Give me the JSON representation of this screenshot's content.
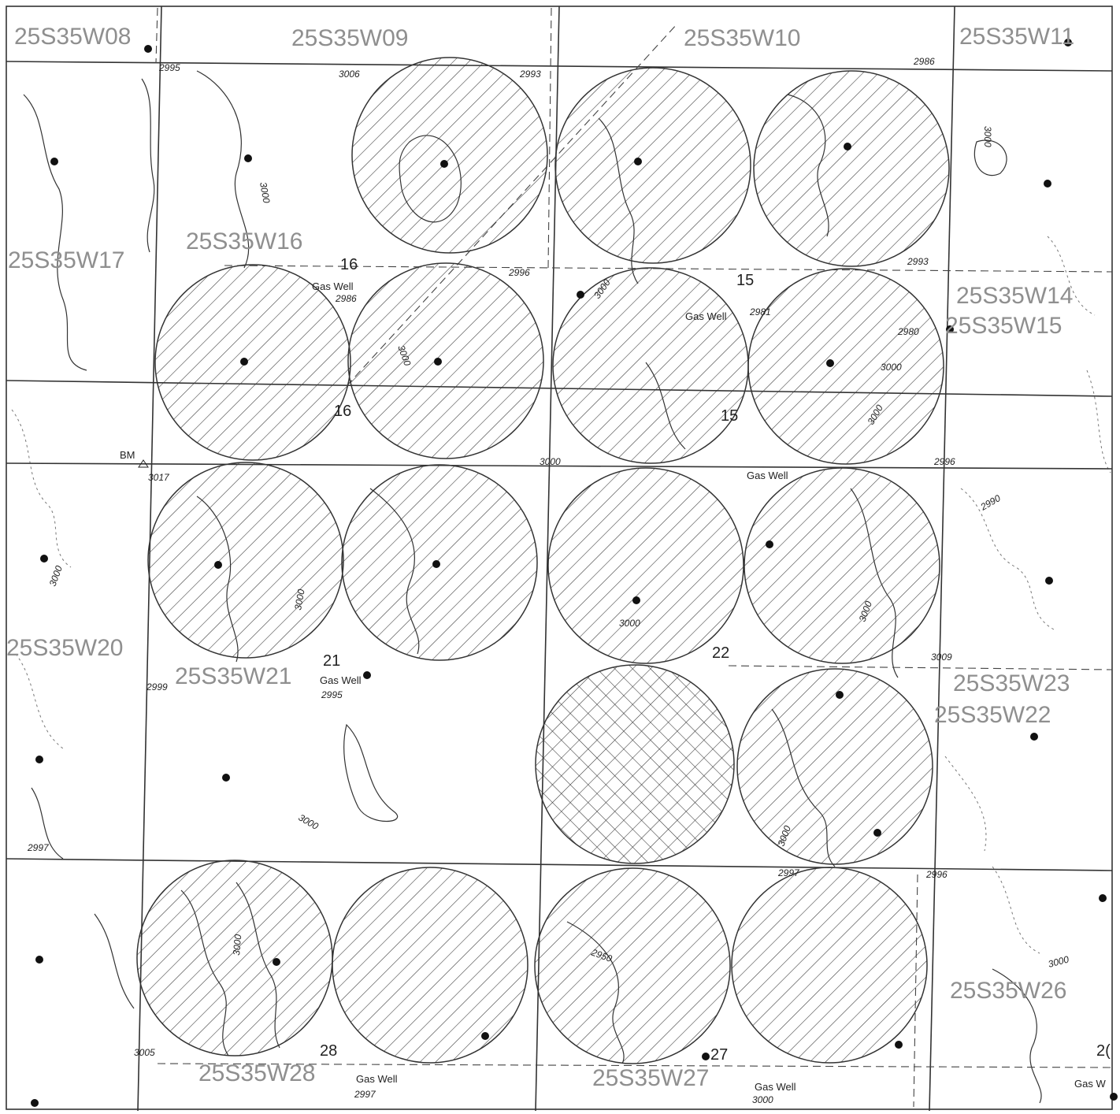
{
  "colors": {
    "background": "#ffffff",
    "ink": "#222222",
    "section_label": "#8f8f8f",
    "hatch": "#333333",
    "contour_solid": "#333333",
    "contour_dotted": "#777777"
  },
  "sections": [
    {
      "id": "s08",
      "label": "25S35W08"
    },
    {
      "id": "s09",
      "label": "25S35W09"
    },
    {
      "id": "s10",
      "label": "25S35W10"
    },
    {
      "id": "s11",
      "label": "25S35W11"
    },
    {
      "id": "s17",
      "label": "25S35W17"
    },
    {
      "id": "s16",
      "label": "25S35W16"
    },
    {
      "id": "s14",
      "label": "25S35W14"
    },
    {
      "id": "s15",
      "label": "25S35W15"
    },
    {
      "id": "s20",
      "label": "25S35W20"
    },
    {
      "id": "s21",
      "label": "25S35W21"
    },
    {
      "id": "s23",
      "label": "25S35W23"
    },
    {
      "id": "s22",
      "label": "25S35W22"
    },
    {
      "id": "s26",
      "label": "25S35W26"
    },
    {
      "id": "s28",
      "label": "25S35W28"
    },
    {
      "id": "s27",
      "label": "25S35W27"
    }
  ],
  "section_numbers": [
    "16",
    "16",
    "15",
    "15",
    "21",
    "22",
    "28",
    "27",
    "2("
  ],
  "elevation_labels": [
    "2995",
    "3006",
    "2993",
    "2986",
    "3000",
    "3000",
    "2993",
    "2996",
    "2986",
    "3000",
    "2981",
    "2980",
    "3000",
    "3000",
    "2996",
    "3000",
    "3017",
    "3000",
    "3000",
    "3000",
    "2990",
    "3000",
    "3000",
    "3009",
    "2999",
    "2995",
    "3000",
    "3000",
    "2997",
    "2997",
    "2996",
    "3000",
    "2950",
    "3005",
    "2997",
    "3000",
    "3000"
  ],
  "well_labels": [
    "Gas Well",
    "Gas Well",
    "Gas Well",
    "Gas Well",
    "Gas Well",
    "Gas Well",
    "Gas W"
  ],
  "benchmark_label": "BM",
  "units": {
    "hatched_count": 17,
    "crosshatched_count": 1
  },
  "well_count": 33
}
